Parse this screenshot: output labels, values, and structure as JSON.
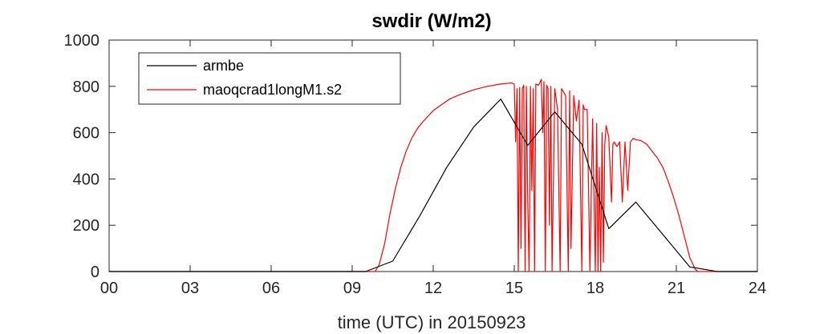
{
  "chart_data": {
    "type": "line",
    "title": "swdir  (W/m2)",
    "xlabel": "time (UTC) in 20150923",
    "ylabel": "",
    "xlim": [
      0,
      24
    ],
    "ylim": [
      0,
      1000
    ],
    "x_ticks": [
      0,
      3,
      6,
      9,
      12,
      15,
      18,
      21,
      24
    ],
    "x_tick_labels": [
      "00",
      "03",
      "06",
      "09",
      "12",
      "15",
      "18",
      "21",
      "24"
    ],
    "y_ticks": [
      0,
      200,
      400,
      600,
      800,
      1000
    ],
    "y_tick_labels": [
      "0",
      "200",
      "400",
      "600",
      "800",
      "1000"
    ],
    "grid": false,
    "legend_position": "top-left",
    "series": [
      {
        "name": "armbe",
        "color": "#000000",
        "x": [
          0,
          1,
          2,
          3,
          4,
          5,
          6,
          7,
          8,
          9,
          9.5,
          10.5,
          11.5,
          12.5,
          13.5,
          14.5,
          15.5,
          16.5,
          17.5,
          18.5,
          19.5,
          20.5,
          21.5,
          22.5,
          23.5,
          24
        ],
        "y": [
          0,
          0,
          0,
          0,
          0,
          0,
          0,
          0,
          0,
          0,
          0,
          45,
          240,
          450,
          625,
          745,
          545,
          690,
          550,
          185,
          300,
          160,
          20,
          0,
          0,
          0
        ]
      },
      {
        "name": "maoqcrad1longM1.s2",
        "color": "#ff0000",
        "x": [
          0,
          9.85,
          10.0,
          10.2,
          10.4,
          10.6,
          10.8,
          11.0,
          11.2,
          11.4,
          11.6,
          11.8,
          12.0,
          12.3,
          12.6,
          13.0,
          13.5,
          14.0,
          14.5,
          14.9,
          15.0,
          15.05,
          15.1,
          15.15,
          15.2,
          15.25,
          15.3,
          15.35,
          15.4,
          15.45,
          15.5,
          15.55,
          15.6,
          15.65,
          15.7,
          15.75,
          15.8,
          15.9,
          16.0,
          16.05,
          16.1,
          16.15,
          16.2,
          16.25,
          16.3,
          16.35,
          16.4,
          16.5,
          16.6,
          16.7,
          16.75,
          16.8,
          16.9,
          17.0,
          17.05,
          17.1,
          17.2,
          17.3,
          17.4,
          17.5,
          17.55,
          17.6,
          17.7,
          17.8,
          17.9,
          18.0,
          18.05,
          18.1,
          18.15,
          18.2,
          18.25,
          18.3,
          18.35,
          18.4,
          18.5,
          18.6,
          18.65,
          18.7,
          18.8,
          18.9,
          19.0,
          19.1,
          19.2,
          19.3,
          19.4,
          19.5,
          19.7,
          19.9,
          20.1,
          20.3,
          20.5,
          20.7,
          20.9,
          21.1,
          21.3,
          21.5,
          21.7,
          21.8,
          21.9,
          24
        ],
        "y": [
          0,
          0,
          30,
          120,
          250,
          360,
          450,
          520,
          575,
          615,
          645,
          670,
          695,
          720,
          745,
          765,
          785,
          800,
          810,
          815,
          810,
          560,
          790,
          0,
          795,
          100,
          790,
          805,
          0,
          800,
          300,
          0,
          800,
          350,
          790,
          0,
          810,
          805,
          830,
          600,
          820,
          0,
          805,
          790,
          200,
          800,
          0,
          790,
          700,
          0,
          790,
          780,
          760,
          0,
          780,
          100,
          760,
          650,
          740,
          0,
          720,
          700,
          700,
          0,
          660,
          0,
          640,
          0,
          450,
          0,
          600,
          40,
          550,
          630,
          580,
          300,
          550,
          560,
          540,
          560,
          300,
          560,
          350,
          560,
          575,
          570,
          565,
          550,
          520,
          490,
          450,
          390,
          320,
          240,
          150,
          60,
          10,
          0,
          0,
          0
        ]
      }
    ]
  }
}
